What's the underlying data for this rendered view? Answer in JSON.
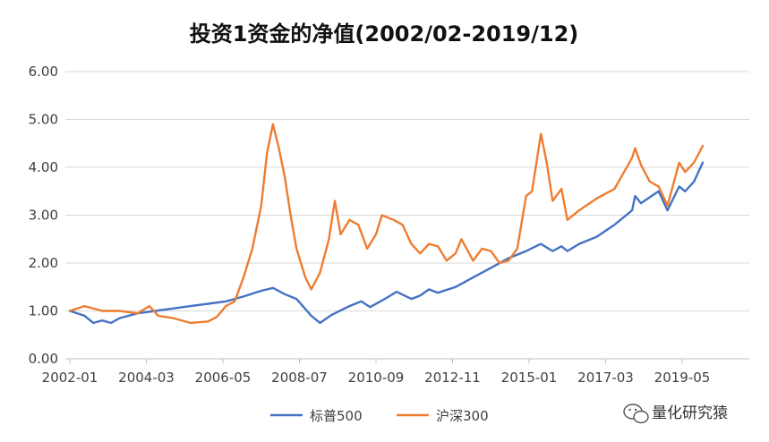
{
  "chart_data": {
    "type": "line",
    "title": "投资1资金的净值(2002/02-2019/12)",
    "xlabel": "",
    "ylabel": "",
    "ylim": [
      0,
      6
    ],
    "yticks": [
      "0.00",
      "1.00",
      "2.00",
      "3.00",
      "4.00",
      "5.00",
      "6.00"
    ],
    "xticks": [
      "2002-01",
      "2004-03",
      "2006-05",
      "2008-07",
      "2010-09",
      "2012-11",
      "2015-01",
      "2017-03",
      "2019-05"
    ],
    "grid": "horizontal",
    "legend": "bottom",
    "series": [
      {
        "name": "标普500",
        "color": "#4472C4",
        "points": [
          [
            "2002-01",
            1.0
          ],
          [
            "2002-06",
            0.9
          ],
          [
            "2002-09",
            0.75
          ],
          [
            "2002-12",
            0.8
          ],
          [
            "2003-03",
            0.75
          ],
          [
            "2003-06",
            0.85
          ],
          [
            "2003-12",
            0.95
          ],
          [
            "2004-06",
            1.0
          ],
          [
            "2004-12",
            1.05
          ],
          [
            "2005-06",
            1.1
          ],
          [
            "2005-12",
            1.15
          ],
          [
            "2006-06",
            1.2
          ],
          [
            "2006-12",
            1.3
          ],
          [
            "2007-06",
            1.42
          ],
          [
            "2007-10",
            1.48
          ],
          [
            "2008-02",
            1.35
          ],
          [
            "2008-06",
            1.25
          ],
          [
            "2008-11",
            0.9
          ],
          [
            "2009-02",
            0.75
          ],
          [
            "2009-06",
            0.92
          ],
          [
            "2009-12",
            1.1
          ],
          [
            "2010-04",
            1.2
          ],
          [
            "2010-07",
            1.08
          ],
          [
            "2010-12",
            1.25
          ],
          [
            "2011-04",
            1.4
          ],
          [
            "2011-09",
            1.25
          ],
          [
            "2011-12",
            1.32
          ],
          [
            "2012-03",
            1.45
          ],
          [
            "2012-06",
            1.38
          ],
          [
            "2012-12",
            1.5
          ],
          [
            "2013-06",
            1.7
          ],
          [
            "2013-12",
            1.9
          ],
          [
            "2014-06",
            2.1
          ],
          [
            "2014-12",
            2.25
          ],
          [
            "2015-05",
            2.4
          ],
          [
            "2015-09",
            2.25
          ],
          [
            "2015-12",
            2.35
          ],
          [
            "2016-02",
            2.25
          ],
          [
            "2016-06",
            2.4
          ],
          [
            "2016-12",
            2.55
          ],
          [
            "2017-06",
            2.8
          ],
          [
            "2017-12",
            3.1
          ],
          [
            "2018-01",
            3.4
          ],
          [
            "2018-03",
            3.25
          ],
          [
            "2018-09",
            3.5
          ],
          [
            "2018-12",
            3.1
          ],
          [
            "2019-04",
            3.6
          ],
          [
            "2019-06",
            3.5
          ],
          [
            "2019-09",
            3.7
          ],
          [
            "2019-12",
            4.1
          ]
        ]
      },
      {
        "name": "沪深300",
        "color": "#ED7D31",
        "points": [
          [
            "2002-01",
            1.0
          ],
          [
            "2002-06",
            1.1
          ],
          [
            "2002-12",
            1.0
          ],
          [
            "2003-06",
            1.0
          ],
          [
            "2003-12",
            0.95
          ],
          [
            "2004-04",
            1.1
          ],
          [
            "2004-07",
            0.9
          ],
          [
            "2004-12",
            0.85
          ],
          [
            "2005-06",
            0.75
          ],
          [
            "2005-12",
            0.78
          ],
          [
            "2006-03",
            0.88
          ],
          [
            "2006-06",
            1.1
          ],
          [
            "2006-09",
            1.2
          ],
          [
            "2006-12",
            1.7
          ],
          [
            "2007-03",
            2.3
          ],
          [
            "2007-06",
            3.2
          ],
          [
            "2007-08",
            4.3
          ],
          [
            "2007-10",
            4.9
          ],
          [
            "2007-12",
            4.4
          ],
          [
            "2008-02",
            3.8
          ],
          [
            "2008-04",
            3.0
          ],
          [
            "2008-06",
            2.3
          ],
          [
            "2008-09",
            1.7
          ],
          [
            "2008-11",
            1.45
          ],
          [
            "2009-02",
            1.8
          ],
          [
            "2009-05",
            2.5
          ],
          [
            "2009-07",
            3.3
          ],
          [
            "2009-09",
            2.6
          ],
          [
            "2009-12",
            2.9
          ],
          [
            "2010-03",
            2.8
          ],
          [
            "2010-06",
            2.3
          ],
          [
            "2010-09",
            2.6
          ],
          [
            "2010-11",
            3.0
          ],
          [
            "2011-03",
            2.9
          ],
          [
            "2011-06",
            2.8
          ],
          [
            "2011-09",
            2.4
          ],
          [
            "2011-12",
            2.2
          ],
          [
            "2012-03",
            2.4
          ],
          [
            "2012-06",
            2.35
          ],
          [
            "2012-09",
            2.05
          ],
          [
            "2012-12",
            2.2
          ],
          [
            "2013-02",
            2.5
          ],
          [
            "2013-06",
            2.05
          ],
          [
            "2013-09",
            2.3
          ],
          [
            "2013-12",
            2.25
          ],
          [
            "2014-03",
            2.0
          ],
          [
            "2014-06",
            2.05
          ],
          [
            "2014-09",
            2.3
          ],
          [
            "2014-12",
            3.4
          ],
          [
            "2015-02",
            3.5
          ],
          [
            "2015-05",
            4.7
          ],
          [
            "2015-07",
            4.1
          ],
          [
            "2015-09",
            3.3
          ],
          [
            "2015-12",
            3.55
          ],
          [
            "2016-02",
            2.9
          ],
          [
            "2016-06",
            3.1
          ],
          [
            "2016-12",
            3.35
          ],
          [
            "2017-06",
            3.55
          ],
          [
            "2017-12",
            4.2
          ],
          [
            "2018-01",
            4.4
          ],
          [
            "2018-03",
            4.05
          ],
          [
            "2018-06",
            3.7
          ],
          [
            "2018-09",
            3.6
          ],
          [
            "2018-12",
            3.2
          ],
          [
            "2019-04",
            4.1
          ],
          [
            "2019-06",
            3.9
          ],
          [
            "2019-09",
            4.1
          ],
          [
            "2019-12",
            4.45
          ]
        ]
      }
    ],
    "watermark": "量化研究猿"
  }
}
